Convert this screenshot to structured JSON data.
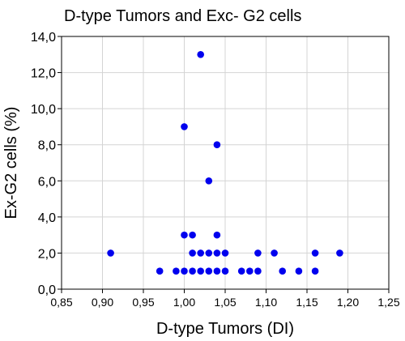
{
  "chart_data": {
    "type": "scatter",
    "title": "D-type Tumors and Exc- G2 cells",
    "xlabel": "D-type Tumors (DI)",
    "ylabel": "Ex-G2 cells (%)",
    "xlim": [
      0.85,
      1.25
    ],
    "ylim": [
      0,
      14
    ],
    "xticks": [
      "0,85",
      "0,90",
      "0,95",
      "1,00",
      "1,05",
      "1,10",
      "1,15",
      "1,20",
      "1,25"
    ],
    "yticks": [
      "0,0",
      "2,0",
      "4,0",
      "6,0",
      "8,0",
      "10,0",
      "12,0",
      "14,0"
    ],
    "grid": true,
    "point_color": "#0000ee",
    "points": [
      [
        0.91,
        2
      ],
      [
        0.97,
        1
      ],
      [
        0.99,
        1
      ],
      [
        1.0,
        1
      ],
      [
        1.01,
        1
      ],
      [
        1.02,
        1
      ],
      [
        1.03,
        1
      ],
      [
        1.04,
        1
      ],
      [
        1.05,
        1
      ],
      [
        1.07,
        1
      ],
      [
        1.08,
        1
      ],
      [
        1.09,
        1
      ],
      [
        1.12,
        1
      ],
      [
        1.14,
        1
      ],
      [
        1.16,
        1
      ],
      [
        1.01,
        2
      ],
      [
        1.02,
        2
      ],
      [
        1.03,
        2
      ],
      [
        1.04,
        2
      ],
      [
        1.05,
        2
      ],
      [
        1.09,
        2
      ],
      [
        1.11,
        2
      ],
      [
        1.16,
        2
      ],
      [
        1.19,
        2
      ],
      [
        1.0,
        3
      ],
      [
        1.01,
        3
      ],
      [
        1.04,
        3
      ],
      [
        1.03,
        6
      ],
      [
        1.04,
        8
      ],
      [
        1.0,
        9
      ],
      [
        1.02,
        13
      ]
    ]
  }
}
